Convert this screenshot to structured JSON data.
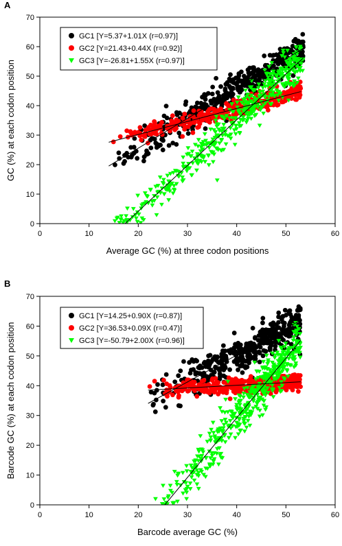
{
  "chart_data": [
    {
      "panel_label": "A",
      "type": "scatter",
      "xlabel": "Average GC (%) at three codon positions",
      "ylabel": "GC (%) at each codon position",
      "xlim": [
        0,
        60
      ],
      "ylim": [
        0,
        70
      ],
      "xticks": [
        "0",
        "10",
        "20",
        "30",
        "40",
        "50",
        "60"
      ],
      "yticks": [
        "0",
        "10",
        "20",
        "30",
        "40",
        "50",
        "60",
        "70"
      ],
      "legend_placement": "top-left",
      "series": [
        {
          "name": "GC1",
          "legend_label": "GC1 [Y=5.37+1.01X (r=0.97)]",
          "color": "#000000",
          "marker": "circle",
          "fit": {
            "intercept": 5.37,
            "slope": 1.01,
            "x_range": [
              14,
              54
            ]
          },
          "cloud": {
            "x_range": [
              14,
              53.5
            ],
            "slope": 1.01,
            "intercept": 5.37,
            "spread": 2.6,
            "count": 420
          }
        },
        {
          "name": "GC2",
          "legend_label": "GC2 [Y=21.43+0.44X (r=0.92)]",
          "color": "#ff0000",
          "marker": "circle",
          "fit": {
            "intercept": 21.43,
            "slope": 0.44,
            "x_range": [
              14,
              53
            ]
          },
          "cloud": {
            "x_range": [
              14,
              53
            ],
            "slope": 0.44,
            "intercept": 21.43,
            "spread": 1.4,
            "count": 380
          }
        },
        {
          "name": "GC3",
          "legend_label": "GC3 [Y=-26.81+1.55X (r=0.97)]",
          "color": "#00ff00",
          "marker": "triangle-down",
          "fit": {
            "intercept": -26.81,
            "slope": 1.55,
            "x_range": [
              17.3,
              53.5
            ]
          },
          "cloud": {
            "x_range": [
              13.5,
              53.5
            ],
            "slope": 1.55,
            "intercept": -26.81,
            "spread": 3.6,
            "count": 480
          }
        }
      ]
    },
    {
      "panel_label": "B",
      "type": "scatter",
      "xlabel": "Barcode average GC (%)",
      "ylabel": "Barcode GC (%) at each codon position",
      "xlim": [
        0,
        60
      ],
      "ylim": [
        0,
        70
      ],
      "xticks": [
        "0",
        "10",
        "20",
        "30",
        "40",
        "50",
        "60"
      ],
      "yticks": [
        "0",
        "10",
        "20",
        "30",
        "40",
        "50",
        "60",
        "70"
      ],
      "legend_placement": "top-left",
      "series": [
        {
          "name": "GC1",
          "legend_label": "GC1 [Y=14.25+0.90X (r=0.87)]",
          "color": "#000000",
          "marker": "circle",
          "fit": {
            "intercept": 14.25,
            "slope": 0.9,
            "x_range": [
              22,
              53
            ]
          },
          "cloud": {
            "x_range": [
              22,
              53
            ],
            "slope": 0.9,
            "intercept": 14.25,
            "spread": 3.2,
            "count": 420
          }
        },
        {
          "name": "GC2",
          "legend_label": "GC2 [Y=36.53+0.09X (r=0.47)]",
          "color": "#ff0000",
          "marker": "circle",
          "fit": {
            "intercept": 36.53,
            "slope": 0.09,
            "x_range": [
              22,
              53
            ]
          },
          "cloud": {
            "x_range": [
              22,
              53
            ],
            "slope": 0.09,
            "intercept": 36.53,
            "spread": 1.3,
            "count": 380
          }
        },
        {
          "name": "GC3",
          "legend_label": "GC3 [Y=-50.79+2.00X (r=0.96)]",
          "color": "#00ff00",
          "marker": "triangle-down",
          "fit": {
            "intercept": -50.79,
            "slope": 2.0,
            "x_range": [
              25.4,
              53
            ]
          },
          "cloud": {
            "x_range": [
              22,
              53
            ],
            "slope": 2.0,
            "intercept": -50.79,
            "spread": 3.8,
            "count": 480
          }
        }
      ]
    }
  ]
}
